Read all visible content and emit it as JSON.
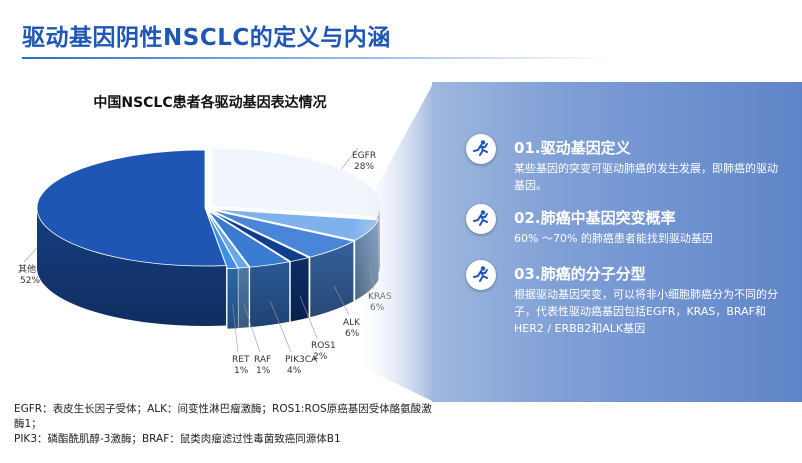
{
  "slide_title": "驱动基因阴性NSCLC的定义与内涵",
  "chart_data": {
    "type": "pie",
    "title": "中国NSCLC患者各驱动基因表达情况",
    "slices": [
      {
        "label": "EGFR",
        "value": 28,
        "value_label": "28%",
        "color": "#f1f6fc"
      },
      {
        "label": "KRAS",
        "value": 6,
        "value_label": "6%",
        "color": "#7fb2ec"
      },
      {
        "label": "ALK",
        "value": 6,
        "value_label": "6%",
        "color": "#4a86d8"
      },
      {
        "label": "ROS1",
        "value": 2,
        "value_label": "2%",
        "color": "#0f3e8c"
      },
      {
        "label": "PIK3CA",
        "value": 4,
        "value_label": "4%",
        "color": "#3a7bd2"
      },
      {
        "label": "RAF",
        "value": 1,
        "value_label": "1%",
        "color": "#6aa6ea"
      },
      {
        "label": "RET",
        "value": 1,
        "value_label": "1%",
        "color": "#3f8fe4"
      },
      {
        "label": "其他",
        "value": 52,
        "value_label": "52%",
        "color": "#1f55b3"
      }
    ]
  },
  "items": [
    {
      "title": "01.驱动基因定义",
      "body": "某些基因的突变可驱动肺癌的发生发展，即肺癌的驱动基因。"
    },
    {
      "title": "02.肺癌中基因突变概率",
      "body": "60% ～70% 的肺癌患者能找到驱动基因"
    },
    {
      "title": "03.肺癌的分子分型",
      "body": "根据驱动基因突变，可以将非小细胞肺癌分为不同的分子，代表性驱动癌基因包括EGFR，KRAS，BRAF和HER2 / ERBB2和ALK基因"
    }
  ],
  "footnote": {
    "line1": "EGFR：表皮生长因子受体；ALK：间变性淋巴瘤激酶；ROS1:ROS原癌基因受体酪氨酸激酶1；",
    "line2": "PIK3：磷酯酰肌醇-3激酶；BRAF：鼠类肉瘤滤过性毒菌致癌同源体B1"
  },
  "accent_color": "#1f57b6",
  "icon": "running-person-icon"
}
